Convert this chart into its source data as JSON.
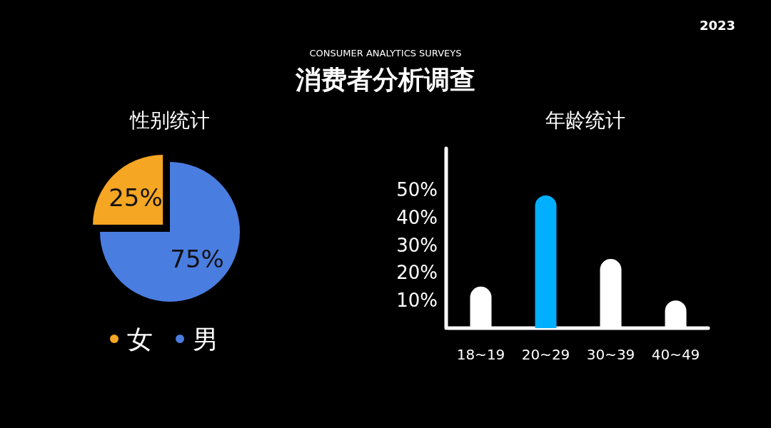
{
  "chart_data": [
    {
      "type": "pie",
      "title": "性别统计",
      "categories": [
        "女",
        "男"
      ],
      "values": [
        25,
        75
      ],
      "colors": [
        "#f5a623",
        "#4a7de0"
      ],
      "value_labels": [
        "25%",
        "75%"
      ],
      "legend": "bottom",
      "annotations": [
        "CONSUMER ANALYTICS SURVEYS",
        "消费者分析调查",
        "2023"
      ]
    },
    {
      "type": "bar",
      "title": "年龄统计",
      "categories": [
        "18~19",
        "20~29",
        "30~39",
        "40~49"
      ],
      "values": [
        15,
        48,
        25,
        10
      ],
      "colors": [
        "#ffffff",
        "#00b0ff",
        "#ffffff",
        "#ffffff"
      ],
      "ylim": [
        0,
        65
      ],
      "yticks": [
        {
          "value": 10,
          "label": "10%"
        },
        {
          "value": 20,
          "label": "20%"
        },
        {
          "value": 30,
          "label": "30%"
        },
        {
          "value": 40,
          "label": "40%"
        },
        {
          "value": 50,
          "label": "50%"
        }
      ],
      "grid": false
    }
  ]
}
